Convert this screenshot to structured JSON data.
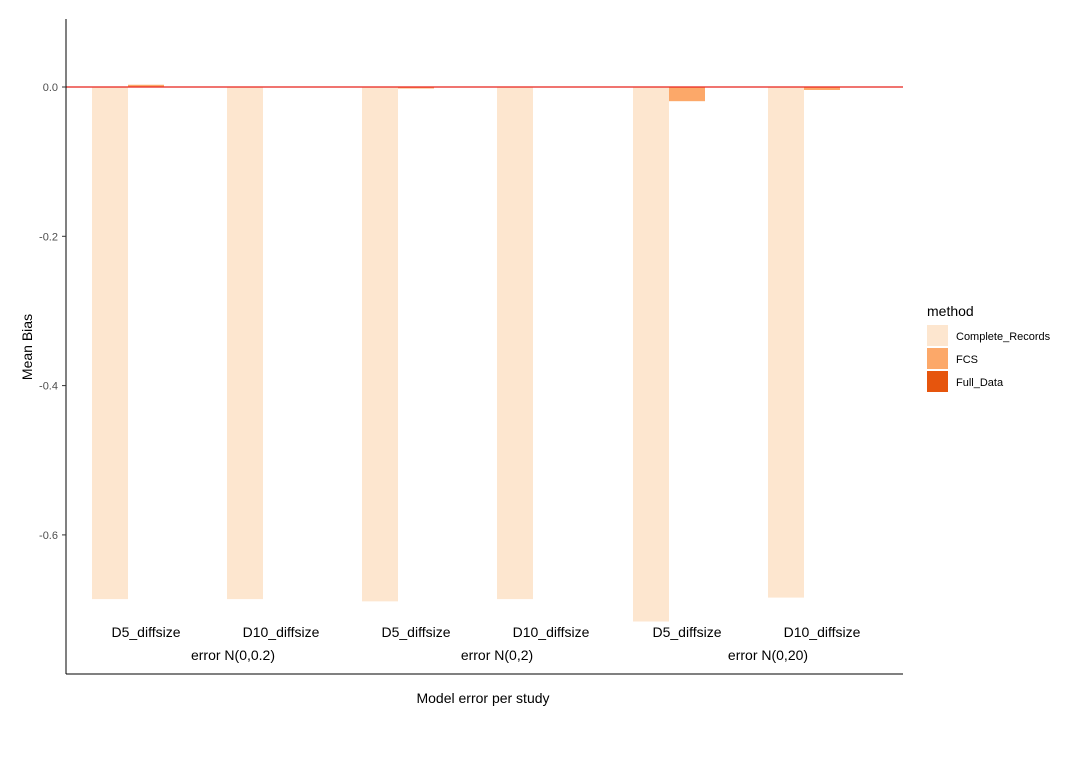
{
  "chart_data": {
    "type": "bar",
    "xlabel": "Model error per study",
    "ylabel": "Mean Bias",
    "ylim": [
      -0.78,
      0.09
    ],
    "yticks": [
      0.0,
      -0.2,
      -0.4,
      -0.6
    ],
    "ytick_labels": [
      "0.0",
      "-0.2",
      "-0.4",
      "-0.6"
    ],
    "reference_line": {
      "y": 0,
      "color": "#e8221a"
    },
    "grid": false,
    "legend": {
      "title": "method",
      "placement": "right"
    },
    "categories": [
      "D5_diffsize",
      "D10_diffsize",
      "D5_diffsize",
      "D10_diffsize",
      "D5_diffsize",
      "D10_diffsize"
    ],
    "groups": [
      {
        "label": "error N(0,0.2)",
        "categories": [
          0,
          1
        ]
      },
      {
        "label": "error N(0,2)",
        "categories": [
          2,
          3
        ]
      },
      {
        "label": "error N(0,20)",
        "categories": [
          4,
          5
        ]
      }
    ],
    "series": [
      {
        "name": "Complete_Records",
        "color": "#fde6cf",
        "values": [
          -0.686,
          -0.686,
          -0.689,
          -0.686,
          -0.716,
          -0.684
        ]
      },
      {
        "name": "FCS",
        "color": "#fca869",
        "values": [
          0.003,
          0.0,
          -0.002,
          0.0,
          -0.019,
          -0.004
        ]
      },
      {
        "name": "Full_Data",
        "color": "#e6550d",
        "values": [
          0.0,
          0.0,
          0.0,
          0.0,
          0.0,
          0.0
        ]
      }
    ]
  }
}
